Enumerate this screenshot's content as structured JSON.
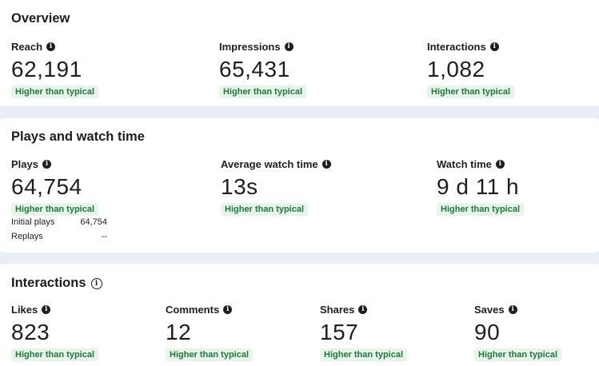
{
  "overview": {
    "title": "Overview",
    "metrics": [
      {
        "label": "Reach",
        "value": "62,191",
        "badge": "Higher than typical"
      },
      {
        "label": "Impressions",
        "value": "65,431",
        "badge": "Higher than typical"
      },
      {
        "label": "Interactions",
        "value": "1,082",
        "badge": "Higher than typical"
      }
    ]
  },
  "plays": {
    "title": "Plays and watch time",
    "metrics": [
      {
        "label": "Plays",
        "value": "64,754",
        "badge": "Higher than typical"
      },
      {
        "label": "Average watch time",
        "value": "13s",
        "badge": "Higher than typical"
      },
      {
        "label": "Watch time",
        "value": "9 d 11 h",
        "badge": "Higher than typical"
      }
    ],
    "breakdown": [
      {
        "label": "Initial plays",
        "value": "64,754"
      },
      {
        "label": "Replays",
        "value": "--"
      }
    ]
  },
  "interactions": {
    "title": "Interactions",
    "metrics": [
      {
        "label": "Likes",
        "value": "823",
        "badge": "Higher than typical"
      },
      {
        "label": "Comments",
        "value": "12",
        "badge": "Higher than typical"
      },
      {
        "label": "Shares",
        "value": "157",
        "badge": "Higher than typical"
      },
      {
        "label": "Saves",
        "value": "90",
        "badge": "Higher than typical"
      }
    ]
  },
  "icons": {
    "info": "info-icon"
  },
  "colors": {
    "badge_bg": "#e6f4ea",
    "badge_text": "#1e7a3a",
    "page_bg": "#e9eef6"
  }
}
